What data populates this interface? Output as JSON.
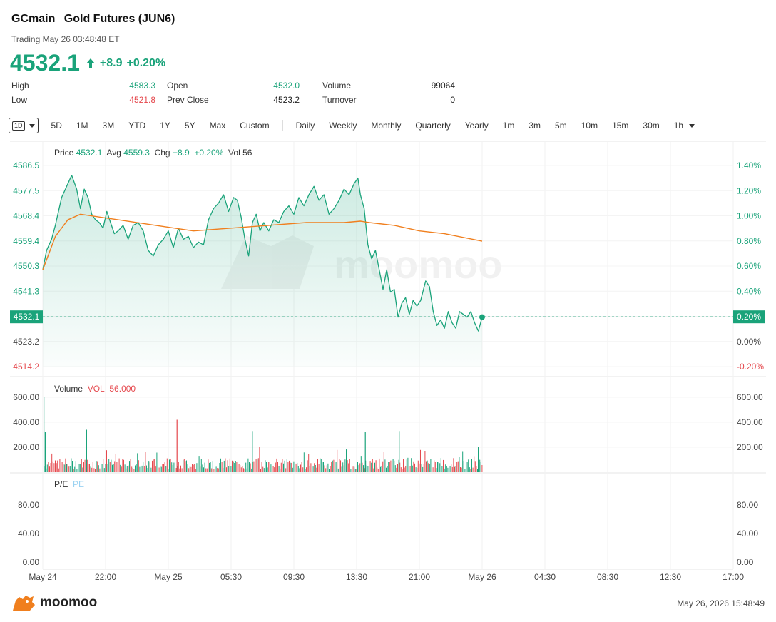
{
  "header": {
    "symbol": "GCmain",
    "name": "Gold Futures (JUN6)",
    "status": "Trading May 26 03:48:48 ET",
    "price": "4532.1",
    "change": "+8.9",
    "change_pct": "+0.20%"
  },
  "stats": {
    "high_label": "High",
    "high": "4583.3",
    "low_label": "Low",
    "low": "4521.8",
    "open_label": "Open",
    "open": "4532.0",
    "prev_close_label": "Prev Close",
    "prev_close": "4523.2",
    "volume_label": "Volume",
    "volume": "99064",
    "turnover_label": "Turnover",
    "turnover": "0"
  },
  "tabs": {
    "selected": "1D",
    "periods": [
      "5D",
      "1M",
      "3M",
      "YTD",
      "1Y",
      "5Y",
      "Max",
      "Custom"
    ],
    "intervals": [
      "Daily",
      "Weekly",
      "Monthly",
      "Quarterly",
      "Yearly",
      "1m",
      "3m",
      "5m",
      "10m",
      "15m",
      "30m",
      "1h"
    ]
  },
  "legend": {
    "price_label": "Price",
    "price": "4532.1",
    "avg_label": "Avg",
    "avg": "4559.3",
    "chg_label": "Chg",
    "chg": "+8.9",
    "chg_pct": "+0.20%",
    "vol_label": "Vol",
    "vol": "56",
    "volume_title": "Volume",
    "volume_value": "VOL: 56.000",
    "pe_title": "P/E",
    "pe_value": "PE"
  },
  "chart_data": {
    "type": "line",
    "price_axis": {
      "ticks": [
        "4586.5",
        "4577.5",
        "4568.4",
        "4559.4",
        "4550.3",
        "4541.3",
        "4532.1",
        "4523.2",
        "4514.2"
      ],
      "pct_ticks": [
        "1.40%",
        "1.20%",
        "1.00%",
        "0.80%",
        "0.60%",
        "0.40%",
        "0.20%",
        "0.00%",
        "-0.20%"
      ],
      "range": [
        4514.2,
        4586.5
      ],
      "current": "4532.1",
      "current_pct": "0.20%",
      "prev_close": 4523.2
    },
    "x_axis": {
      "ticks": [
        "May 24",
        "22:00",
        "May 25",
        "05:30",
        "09:30",
        "13:30",
        "21:00",
        "May 26",
        "04:30",
        "08:30",
        "12:30",
        "17:00"
      ],
      "range_hours": [
        0,
        55
      ]
    },
    "series": [
      {
        "name": "Price",
        "color": "#1aa37a",
        "points": [
          [
            0.0,
            4549
          ],
          [
            0.3,
            4556
          ],
          [
            0.7,
            4560
          ],
          [
            1.0,
            4565
          ],
          [
            1.5,
            4575
          ],
          [
            2.0,
            4580
          ],
          [
            2.3,
            4583
          ],
          [
            2.7,
            4578
          ],
          [
            3.0,
            4571
          ],
          [
            3.3,
            4578
          ],
          [
            3.6,
            4575
          ],
          [
            3.9,
            4569
          ],
          [
            4.2,
            4567
          ],
          [
            4.5,
            4566
          ],
          [
            4.8,
            4564
          ],
          [
            5.1,
            4570
          ],
          [
            5.4,
            4566
          ],
          [
            5.7,
            4562
          ],
          [
            6.0,
            4563
          ],
          [
            6.4,
            4565
          ],
          [
            6.8,
            4560
          ],
          [
            7.2,
            4565
          ],
          [
            7.6,
            4566
          ],
          [
            8.0,
            4563
          ],
          [
            8.4,
            4556
          ],
          [
            8.8,
            4554
          ],
          [
            9.2,
            4558
          ],
          [
            9.6,
            4560
          ],
          [
            10.0,
            4563
          ],
          [
            10.4,
            4557
          ],
          [
            10.8,
            4564
          ],
          [
            11.2,
            4560
          ],
          [
            11.6,
            4561
          ],
          [
            12.0,
            4557
          ],
          [
            12.4,
            4559
          ],
          [
            12.8,
            4558
          ],
          [
            13.2,
            4567
          ],
          [
            13.6,
            4571
          ],
          [
            14.0,
            4573
          ],
          [
            14.4,
            4576
          ],
          [
            14.8,
            4570
          ],
          [
            15.2,
            4575
          ],
          [
            15.5,
            4574
          ],
          [
            15.8,
            4568
          ],
          [
            16.1,
            4560
          ],
          [
            16.4,
            4554
          ],
          [
            16.7,
            4566
          ],
          [
            17.0,
            4569
          ],
          [
            17.3,
            4563
          ],
          [
            17.6,
            4566
          ],
          [
            18.0,
            4563
          ],
          [
            18.4,
            4567
          ],
          [
            18.8,
            4566
          ],
          [
            19.2,
            4570
          ],
          [
            19.6,
            4572
          ],
          [
            20.0,
            4569
          ],
          [
            20.4,
            4575
          ],
          [
            20.8,
            4572
          ],
          [
            21.2,
            4576
          ],
          [
            21.6,
            4579
          ],
          [
            22.0,
            4574
          ],
          [
            22.4,
            4576
          ],
          [
            22.8,
            4569
          ],
          [
            23.2,
            4571
          ],
          [
            23.6,
            4574
          ],
          [
            24.0,
            4578
          ],
          [
            24.4,
            4576
          ],
          [
            24.8,
            4580
          ],
          [
            25.1,
            4582
          ],
          [
            25.3,
            4576
          ],
          [
            25.6,
            4571
          ],
          [
            25.9,
            4558
          ],
          [
            26.2,
            4553
          ],
          [
            26.5,
            4556
          ],
          [
            26.8,
            4549
          ],
          [
            27.1,
            4542
          ],
          [
            27.4,
            4549
          ],
          [
            27.7,
            4541
          ],
          [
            28.0,
            4542
          ],
          [
            28.3,
            4532
          ],
          [
            28.6,
            4537
          ],
          [
            28.9,
            4539
          ],
          [
            29.2,
            4533
          ],
          [
            29.5,
            4538
          ],
          [
            29.8,
            4536
          ],
          [
            30.1,
            4538
          ],
          [
            30.5,
            4545
          ],
          [
            30.8,
            4543
          ],
          [
            31.1,
            4534
          ],
          [
            31.4,
            4529
          ],
          [
            31.7,
            4531
          ],
          [
            32.0,
            4528
          ],
          [
            32.3,
            4534
          ],
          [
            32.6,
            4530
          ],
          [
            32.9,
            4528
          ],
          [
            33.2,
            4534
          ],
          [
            33.5,
            4533
          ],
          [
            33.8,
            4532
          ],
          [
            34.1,
            4534
          ],
          [
            34.4,
            4530
          ],
          [
            34.7,
            4527
          ],
          [
            35.0,
            4532
          ]
        ]
      },
      {
        "name": "Avg",
        "color": "#f07f1e",
        "points": [
          [
            0.0,
            4549
          ],
          [
            1.0,
            4561
          ],
          [
            2.0,
            4567
          ],
          [
            3.0,
            4569
          ],
          [
            6.0,
            4567
          ],
          [
            9.0,
            4565
          ],
          [
            12.0,
            4563
          ],
          [
            15.0,
            4564
          ],
          [
            18.0,
            4565
          ],
          [
            21.0,
            4566
          ],
          [
            24.0,
            4566
          ],
          [
            25.3,
            4566.5
          ],
          [
            26.0,
            4566
          ],
          [
            28.0,
            4565
          ],
          [
            30.0,
            4563
          ],
          [
            32.0,
            4562
          ],
          [
            35.0,
            4559.3
          ]
        ]
      }
    ],
    "volume_panel": {
      "ticks": [
        "600.00",
        "400.00",
        "200.00"
      ],
      "range": [
        0,
        600
      ],
      "spikes": [
        [
          0.0,
          600
        ],
        [
          0.1,
          320
        ],
        [
          3.4,
          340
        ],
        [
          10.6,
          420
        ],
        [
          16.6,
          330
        ],
        [
          25.6,
          320
        ],
        [
          28.3,
          330
        ],
        [
          34.6,
          200
        ]
      ]
    },
    "pe_panel": {
      "ticks": [
        "80.00",
        "40.00",
        "0.00"
      ],
      "range": [
        0,
        80
      ]
    }
  },
  "footer": {
    "brand": "moomoo",
    "timestamp": "May 26, 2026 15:48:49"
  }
}
